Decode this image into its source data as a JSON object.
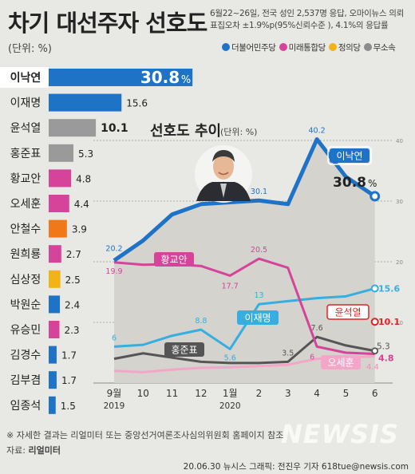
{
  "header": {
    "title": "차기 대선주자 선호도",
    "unit": "(단위: %)",
    "survey_line1": "6월22~26일, 전국 성인 2,537명 응답, 오마이뉴스 의뢰",
    "survey_line2": "표집오차 ±1.9%p(95%신뢰수준 ), 4.1%의 응답률"
  },
  "legend": [
    {
      "label": "더불어민주당",
      "color": "#1f73c6"
    },
    {
      "label": "미래통합당",
      "color": "#d6439a"
    },
    {
      "label": "정의당",
      "color": "#f2b316"
    },
    {
      "label": "무소속",
      "color": "#8c8c8c"
    }
  ],
  "colors": {
    "minju": "#1f73c6",
    "tonghap": "#d6439a",
    "jeongui": "#f2b316",
    "musosok": "#8c8c8c",
    "orange": "#f07818",
    "red": "#e02222",
    "lightblue": "#36aee0",
    "darkgray": "#555555",
    "pink": "#f3a6c8"
  },
  "chart_data": [
    {
      "type": "bar",
      "orientation": "horizontal",
      "categories": [
        "이낙연",
        "이재명",
        "윤석열",
        "홍준표",
        "황교안",
        "오세훈",
        "안철수",
        "원희룡",
        "심상정",
        "박원순",
        "유승민",
        "김경수",
        "김부겸",
        "임종석"
      ],
      "values": [
        30.8,
        15.6,
        10.1,
        5.3,
        4.8,
        4.4,
        3.9,
        2.7,
        2.5,
        2.4,
        2.3,
        1.7,
        1.7,
        1.5
      ],
      "value_labels": [
        "30.8",
        "15.6",
        "10.1",
        "5.3",
        "4.8",
        "4.4",
        "3.9",
        "2.7",
        "2.5",
        "2.4",
        "2.3",
        "1.7",
        "1.7",
        "1.5"
      ],
      "value_suffix": "%",
      "bar_colors": [
        "#1f73c6",
        "#1f73c6",
        "#9a9a9a",
        "#9a9a9a",
        "#d6439a",
        "#d6439a",
        "#f07818",
        "#d6439a",
        "#f2b316",
        "#1f73c6",
        "#d6439a",
        "#1f73c6",
        "#1f73c6",
        "#1f73c6"
      ]
    },
    {
      "type": "line",
      "title": "선호도 추이",
      "title_unit": "(단위: %)",
      "x": [
        "9월",
        "10",
        "11",
        "12",
        "1월",
        "2",
        "3",
        "4",
        "5",
        "6"
      ],
      "x_years": [
        "2019",
        "",
        "",
        "",
        "2020",
        "",
        "",
        "",
        "",
        ""
      ],
      "ylim": [
        0,
        40
      ],
      "y_ticks": [
        10,
        20,
        30,
        40
      ],
      "series": [
        {
          "name": "이낙연",
          "color": "#1f73c6",
          "area": true,
          "values": [
            20.2,
            23.5,
            27.8,
            29.5,
            29.8,
            30.1,
            29.5,
            40.2,
            34,
            30.8
          ],
          "point_labels": [
            {
              "i": 0,
              "text": "20.2"
            },
            {
              "i": 5,
              "text": "30.1"
            },
            {
              "i": 7,
              "text": "40.2"
            }
          ],
          "end_label": "30.8",
          "end_suffix": "%"
        },
        {
          "name": "황교안",
          "color": "#d6439a",
          "values": [
            19.9,
            19.5,
            19.6,
            19.3,
            17.7,
            20.5,
            19,
            6,
            5,
            4.8
          ],
          "point_labels": [
            {
              "i": 0,
              "text": "19.9"
            },
            {
              "i": 4,
              "text": "17.7"
            },
            {
              "i": 5,
              "text": "20.5"
            },
            {
              "i": 7,
              "text": "6"
            }
          ],
          "end_label": "4.8"
        },
        {
          "name": "이재명",
          "color": "#36aee0",
          "values": [
            6,
            6.3,
            7.8,
            8.8,
            5.6,
            13,
            13.5,
            14,
            14.3,
            15.6
          ],
          "point_labels": [
            {
              "i": 0,
              "text": "6"
            },
            {
              "i": 3,
              "text": "8.8"
            },
            {
              "i": 4,
              "text": "5.6"
            },
            {
              "i": 5,
              "text": "13"
            }
          ],
          "end_label": "15.6"
        },
        {
          "name": "홍준표",
          "color": "#555555",
          "values": [
            4,
            4.9,
            4.2,
            3.5,
            3.3,
            3.3,
            3.5,
            7.6,
            6.2,
            5.3
          ],
          "point_labels": [
            {
              "i": 6,
              "text": "3.5"
            },
            {
              "i": 7,
              "text": "7.6"
            }
          ],
          "end_label": "5.3"
        },
        {
          "name": "오세훈",
          "color": "#f3a6c8",
          "values": [
            2,
            1.8,
            2.2,
            2.5,
            2.6,
            2.8,
            3,
            4,
            4.2,
            4.4
          ],
          "point_labels": [],
          "end_label": "4.4"
        },
        {
          "name": "윤석열",
          "color": "#e02222",
          "values": [
            null,
            null,
            null,
            null,
            null,
            null,
            null,
            null,
            null,
            10.1
          ],
          "point_labels": [],
          "end_label": "10.1"
        }
      ]
    }
  ],
  "footer": {
    "footnote": "※ 자세한 결과는 리얼미터 또는 중앙선거여론조사심의위원회 홈페이지 참조",
    "source_prefix": "자료: ",
    "source_name": "리얼미터",
    "credit": "20.06.30 뉴시스 그래픽: 전진우 기자 618tue@newsis.com",
    "watermark": "NEWSIS"
  }
}
